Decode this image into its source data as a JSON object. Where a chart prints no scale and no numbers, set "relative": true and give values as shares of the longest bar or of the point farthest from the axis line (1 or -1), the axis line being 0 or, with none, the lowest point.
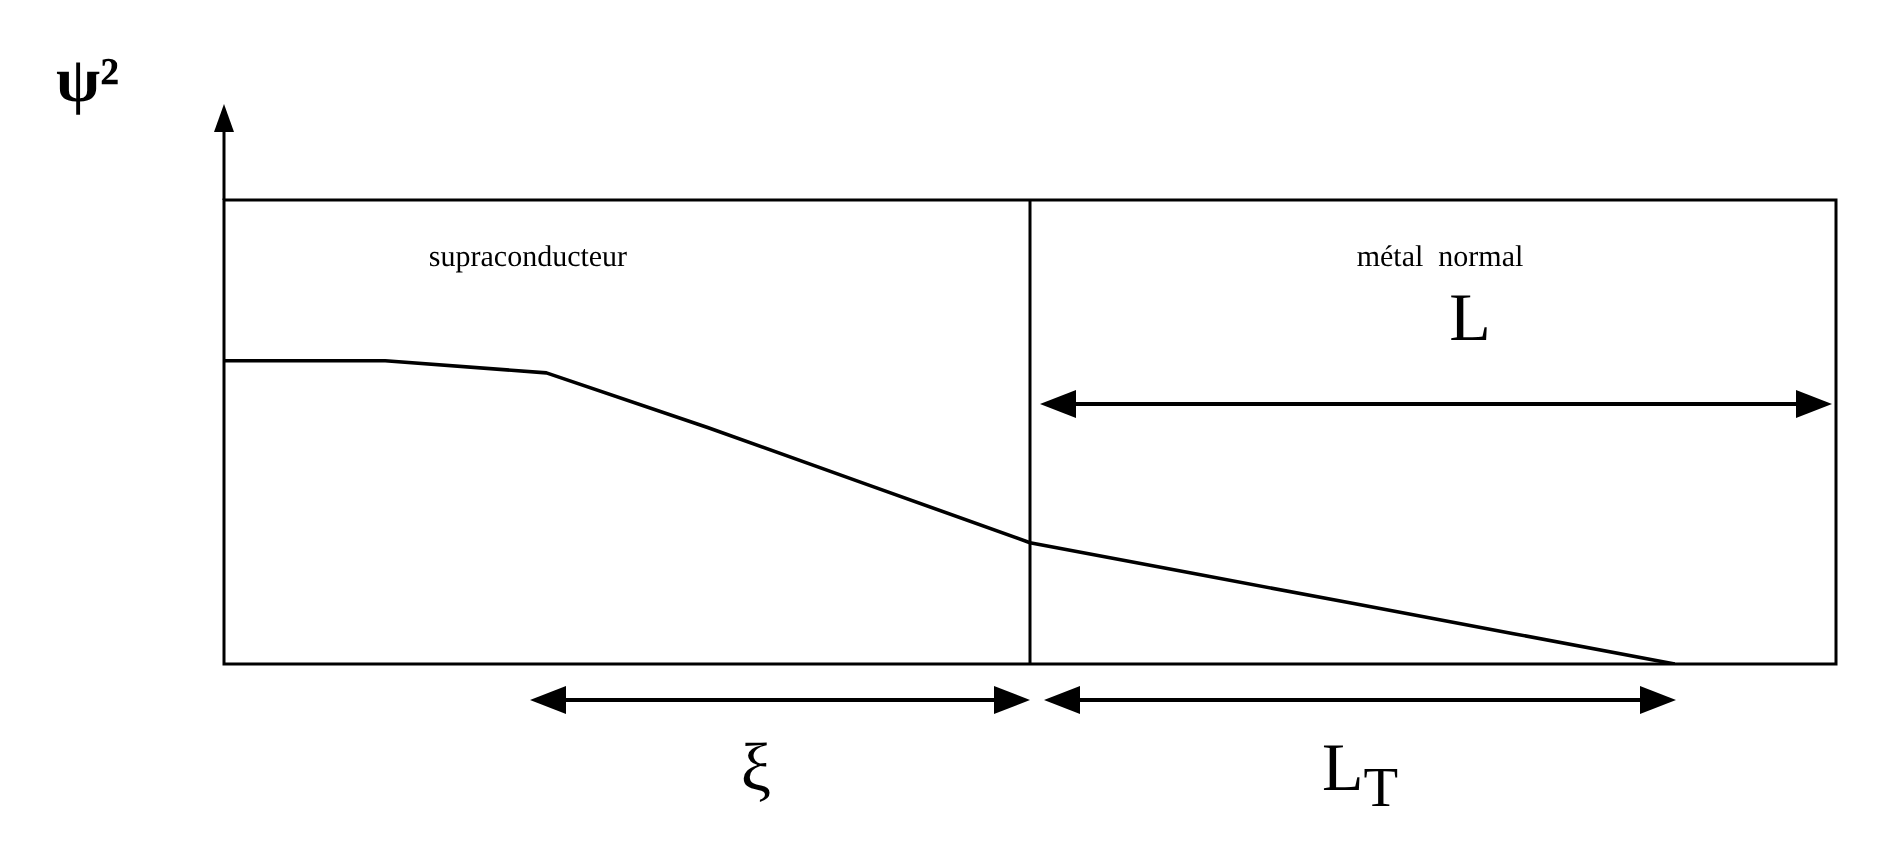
{
  "chart_data": {
    "type": "line",
    "relative": true,
    "ylabel": "ψ²",
    "categories": [
      null,
      null,
      null,
      null,
      null,
      null,
      null,
      null,
      null,
      null,
      null
    ],
    "values": [
      1,
      1,
      0.96,
      0.78,
      0.59,
      0.4,
      0.3,
      0.2,
      0.1,
      0,
      null
    ],
    "color": "#000000",
    "marker": "none",
    "line_style": "solid",
    "annotations": [
      "supraconducteur",
      "métal  normal",
      "L",
      "ξ",
      "L$_{T}$"
    ]
  }
}
